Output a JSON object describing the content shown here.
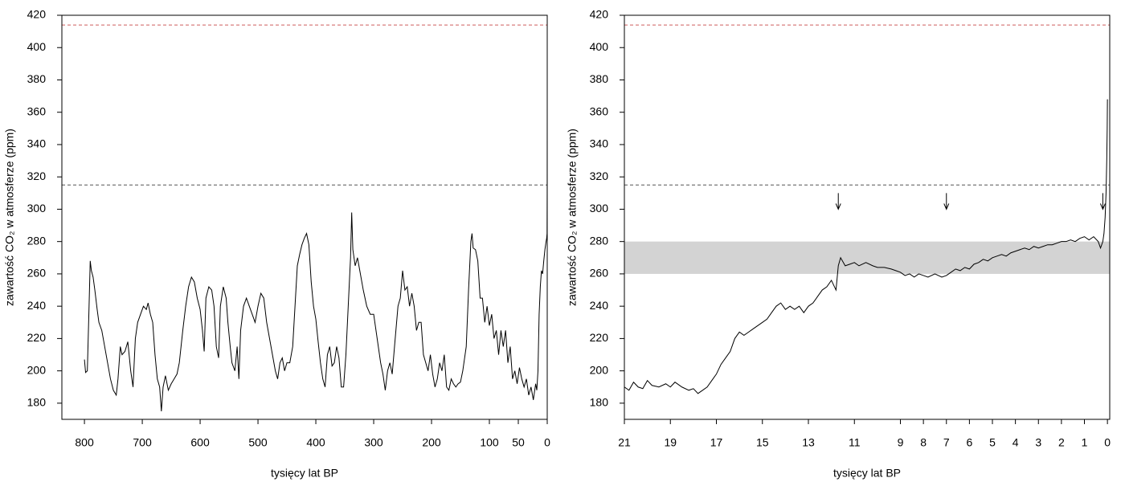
{
  "chart_data": [
    {
      "type": "line",
      "xlabel": "tysięcy lat BP",
      "ylabel": "zawartość CO₂ w atmosferze (ppm)",
      "xlim": [
        839,
        0
      ],
      "ylim": [
        170,
        420
      ],
      "xticks": [
        800,
        700,
        600,
        500,
        400,
        300,
        200,
        100,
        50,
        0
      ],
      "yticks": [
        180,
        200,
        220,
        240,
        260,
        280,
        300,
        320,
        340,
        360,
        380,
        400,
        420
      ],
      "hlines": [
        {
          "y": 414,
          "color": "#cd5c5c"
        },
        {
          "y": 315,
          "color": "#555555"
        }
      ],
      "x": [
        800,
        798,
        795,
        792,
        790,
        788,
        785,
        782,
        778,
        775,
        770,
        765,
        760,
        755,
        750,
        745,
        742,
        738,
        735,
        730,
        725,
        720,
        716,
        712,
        708,
        703,
        698,
        693,
        690,
        686,
        682,
        678,
        674,
        670,
        667,
        664,
        660,
        655,
        650,
        645,
        640,
        636,
        630,
        625,
        620,
        615,
        610,
        605,
        600,
        596,
        593,
        590,
        585,
        580,
        576,
        572,
        568,
        565,
        560,
        555,
        552,
        548,
        545,
        540,
        536,
        533,
        530,
        525,
        520,
        515,
        510,
        505,
        500,
        495,
        490,
        485,
        480,
        475,
        470,
        466,
        462,
        458,
        454,
        450,
        445,
        440,
        436,
        432,
        428,
        424,
        420,
        416,
        412,
        408,
        404,
        400,
        396,
        392,
        388,
        384,
        380,
        376,
        372,
        368,
        364,
        360,
        356,
        352,
        348,
        344,
        340,
        338,
        336,
        332,
        328,
        324,
        318,
        312,
        306,
        300,
        296,
        292,
        288,
        284,
        280,
        276,
        272,
        268,
        264,
        258,
        254,
        250,
        246,
        242,
        238,
        234,
        230,
        226,
        222,
        218,
        214,
        210,
        206,
        202,
        198,
        194,
        190,
        186,
        182,
        178,
        174,
        170,
        166,
        162,
        158,
        154,
        150,
        146,
        140,
        136,
        132,
        130,
        128,
        124,
        120,
        116,
        112,
        108,
        104,
        100,
        96,
        92,
        88,
        84,
        80,
        76,
        72,
        68,
        64,
        60,
        56,
        52,
        48,
        44,
        40,
        36,
        32,
        28,
        24,
        20,
        18,
        16,
        14,
        12,
        10,
        8,
        6,
        4,
        2,
        1,
        0.3,
        0.1,
        0
      ],
      "series": [
        {
          "color": "#000000",
          "values": [
            207,
            199,
            200,
            240,
            268,
            262,
            258,
            250,
            238,
            230,
            225,
            215,
            205,
            195,
            188,
            185,
            195,
            215,
            210,
            212,
            218,
            200,
            190,
            220,
            230,
            235,
            240,
            238,
            242,
            235,
            230,
            210,
            195,
            190,
            175,
            190,
            197,
            188,
            192,
            195,
            198,
            205,
            225,
            240,
            252,
            258,
            255,
            245,
            238,
            225,
            212,
            245,
            252,
            250,
            240,
            215,
            208,
            240,
            252,
            245,
            230,
            215,
            205,
            200,
            215,
            195,
            225,
            240,
            245,
            240,
            235,
            230,
            240,
            248,
            245,
            230,
            220,
            210,
            200,
            195,
            205,
            208,
            200,
            205,
            205,
            215,
            240,
            265,
            272,
            278,
            282,
            285,
            278,
            255,
            240,
            232,
            218,
            205,
            195,
            190,
            210,
            215,
            203,
            205,
            215,
            208,
            190,
            190,
            210,
            240,
            270,
            298,
            275,
            265,
            270,
            262,
            250,
            240,
            235,
            235,
            225,
            215,
            205,
            198,
            188,
            200,
            205,
            198,
            215,
            240,
            245,
            262,
            250,
            252,
            240,
            248,
            240,
            225,
            230,
            230,
            210,
            205,
            200,
            210,
            198,
            190,
            195,
            205,
            200,
            210,
            190,
            188,
            195,
            192,
            190,
            192,
            193,
            200,
            215,
            250,
            280,
            285,
            276,
            275,
            268,
            245,
            245,
            230,
            240,
            228,
            235,
            220,
            225,
            210,
            225,
            215,
            225,
            205,
            215,
            195,
            200,
            192,
            202,
            195,
            190,
            195,
            185,
            190,
            182,
            192,
            188,
            200,
            235,
            252,
            262,
            260,
            268,
            275,
            280,
            282,
            285,
            310,
            368
          ]
        }
      ]
    },
    {
      "type": "line",
      "xlabel": "tysięcy lat BP",
      "ylabel": "zawartość CO₂ w atmosferze (ppm)",
      "xlim": [
        21,
        -0.1
      ],
      "ylim": [
        170,
        420
      ],
      "xticks": [
        21,
        19,
        17,
        15,
        13,
        11,
        9,
        8,
        7,
        6,
        5,
        4,
        3,
        2,
        1,
        0
      ],
      "yticks": [
        180,
        200,
        220,
        240,
        260,
        280,
        300,
        320,
        340,
        360,
        380,
        400,
        420
      ],
      "hlines": [
        {
          "y": 414,
          "color": "#cd5c5c"
        },
        {
          "y": 315,
          "color": "#555555"
        }
      ],
      "band": [
        260,
        280
      ],
      "band_color": "#d3d3d3",
      "arrows_x": [
        11.7,
        7,
        0.2
      ],
      "x": [
        21,
        20.8,
        20.6,
        20.4,
        20.2,
        20,
        19.8,
        19.5,
        19.2,
        19,
        18.8,
        18.5,
        18.2,
        18,
        17.8,
        17.6,
        17.4,
        17.2,
        17,
        16.8,
        16.6,
        16.4,
        16.2,
        16,
        15.8,
        15.6,
        15.4,
        15.2,
        15,
        14.8,
        14.6,
        14.4,
        14.2,
        14,
        13.8,
        13.6,
        13.4,
        13.2,
        13,
        12.8,
        12.6,
        12.4,
        12.2,
        12,
        11.8,
        11.7,
        11.6,
        11.4,
        11.2,
        11,
        10.8,
        10.5,
        10.2,
        10,
        9.7,
        9.4,
        9.2,
        9,
        8.8,
        8.6,
        8.4,
        8.2,
        8,
        7.8,
        7.5,
        7.2,
        7,
        6.8,
        6.6,
        6.4,
        6.2,
        6,
        5.8,
        5.6,
        5.4,
        5.2,
        5,
        4.8,
        4.6,
        4.4,
        4.2,
        4,
        3.8,
        3.6,
        3.4,
        3.2,
        3,
        2.8,
        2.6,
        2.4,
        2.2,
        2,
        1.8,
        1.6,
        1.4,
        1.2,
        1,
        0.8,
        0.6,
        0.4,
        0.3,
        0.2,
        0.15,
        0.1,
        0.06,
        0.03,
        0.01,
        0
      ],
      "series": [
        {
          "color": "#000000",
          "values": [
            190,
            188,
            193,
            190,
            189,
            194,
            191,
            190,
            192,
            190,
            193,
            190,
            188,
            189,
            186,
            188,
            190,
            194,
            198,
            204,
            208,
            212,
            220,
            224,
            222,
            224,
            226,
            228,
            230,
            232,
            236,
            240,
            242,
            238,
            240,
            238,
            240,
            236,
            240,
            242,
            246,
            250,
            252,
            256,
            250,
            265,
            270,
            265,
            266,
            267,
            265,
            267,
            265,
            264,
            264,
            263,
            262,
            261,
            259,
            260,
            258,
            260,
            259,
            258,
            260,
            258,
            259,
            261,
            263,
            262,
            264,
            263,
            266,
            267,
            269,
            268,
            270,
            271,
            272,
            271,
            273,
            274,
            275,
            276,
            275,
            277,
            276,
            277,
            278,
            278,
            279,
            280,
            280,
            281,
            280,
            282,
            283,
            281,
            283,
            280,
            276,
            280,
            285,
            295,
            310,
            330,
            350,
            368
          ]
        }
      ]
    }
  ]
}
